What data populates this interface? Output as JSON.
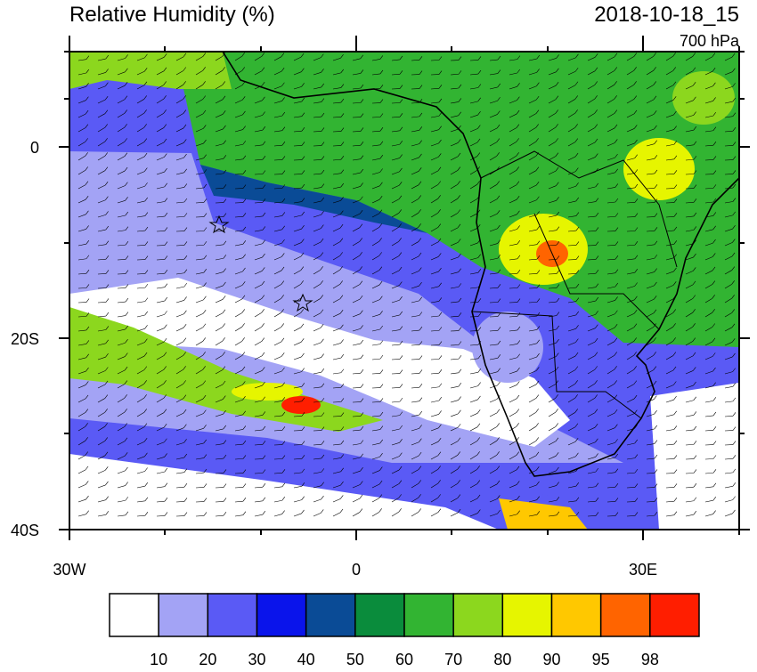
{
  "header": {
    "title": "Relative Humidity (%)",
    "time": "2018-10-18_15",
    "level": "700 hPa"
  },
  "map": {
    "lat_labels": [
      "0",
      "20S",
      "40S"
    ],
    "lon_labels": [
      "30W",
      "0",
      "30E"
    ]
  },
  "colorbar": {
    "colors": [
      "#ffffff",
      "#a3a3f5",
      "#5a5af5",
      "#0a14eb",
      "#0a4b96",
      "#0a8c3c",
      "#32b432",
      "#8cd71e",
      "#e6f500",
      "#ffc800",
      "#ff6400",
      "#ff1e00"
    ],
    "labels": [
      "10",
      "20",
      "30",
      "40",
      "50",
      "60",
      "70",
      "80",
      "90",
      "95",
      "98"
    ]
  }
}
